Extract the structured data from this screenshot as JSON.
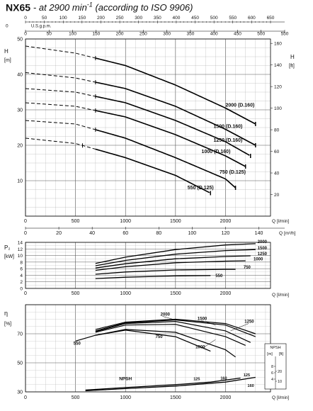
{
  "title": {
    "model": "NX65",
    "speed": "- at 2900 min",
    "exp": "-1",
    "norm": "(according to ISO 9906)"
  },
  "axes": {
    "us_label": "U.S.g.p.m.",
    "us_ticks": [
      "0",
      "50",
      "100",
      "150",
      "200",
      "250",
      "300",
      "350",
      "400",
      "450",
      "500",
      "550",
      "600",
      "650"
    ],
    "imp_label": "Imp.g.p.m.",
    "imp_ticks": [
      "0",
      "50",
      "100",
      "150",
      "200",
      "250",
      "300",
      "350",
      "400",
      "450",
      "500",
      "550"
    ],
    "q_lmin_label": "Q [l/min]",
    "q_lmin_ticks": [
      "0",
      "500",
      "1000",
      "1500",
      "2000"
    ],
    "q_m3h_label": "Q [m³/h]",
    "q_m3h_ticks": [
      "0",
      "20",
      "40",
      "60",
      "80",
      "100",
      "120",
      "140"
    ],
    "h_left_label": "H",
    "h_left_unit": "[m]",
    "h_left_ticks": [
      "10",
      "20",
      "30",
      "40",
      "50"
    ],
    "h_right_label": "H",
    "h_right_unit": "[ft]",
    "h_right_ticks": [
      "20",
      "40",
      "60",
      "80",
      "100",
      "120",
      "140",
      "160"
    ],
    "p_label": "P₂",
    "p_unit": "[kW]",
    "p_ticks": [
      "0",
      "2",
      "4",
      "6",
      "8",
      "10",
      "12",
      "14"
    ],
    "eta_label": "η",
    "eta_unit": "[%]",
    "eta_ticks": [
      "30",
      "50",
      "70"
    ],
    "npsh_label": "NPSH",
    "npsh_m_label": "[m]",
    "npsh_ft_label": "[ft]",
    "npsh_m_ticks": [
      "4",
      "6",
      "8"
    ],
    "npsh_ft_ticks": [
      "10",
      "20"
    ],
    "npsh_curve_label": "NPSH"
  },
  "chart_data": [
    {
      "type": "line",
      "name": "head",
      "xlabel": "Q [l/min]",
      "ylabel": "H [m]",
      "xlim": [
        0,
        2450
      ],
      "ylim": [
        0,
        50
      ],
      "series": [
        {
          "name": "2000 (D.160)",
          "points": [
            [
              0,
              48
            ],
            [
              500,
              46
            ],
            [
              1000,
              42.5
            ],
            [
              1500,
              37
            ],
            [
              2000,
              30.5
            ],
            [
              2300,
              26
            ]
          ]
        },
        {
          "name": "1500 (D.160)",
          "points": [
            [
              0,
              40.5
            ],
            [
              500,
              39
            ],
            [
              1000,
              36
            ],
            [
              1500,
              31
            ],
            [
              2000,
              24.5
            ],
            [
              2300,
              20
            ]
          ]
        },
        {
          "name": "1250 (D.160)",
          "points": [
            [
              0,
              36
            ],
            [
              500,
              35
            ],
            [
              1000,
              32
            ],
            [
              1500,
              27
            ],
            [
              2000,
              21
            ],
            [
              2250,
              17
            ]
          ]
        },
        {
          "name": "1000 (D.160)",
          "points": [
            [
              0,
              32
            ],
            [
              500,
              31
            ],
            [
              1000,
              28
            ],
            [
              1500,
              23
            ],
            [
              2000,
              17
            ],
            [
              2200,
              14
            ]
          ]
        },
        {
          "name": "750 (D.125)",
          "points": [
            [
              0,
              27
            ],
            [
              500,
              26
            ],
            [
              1000,
              22
            ],
            [
              1500,
              16.5
            ],
            [
              2000,
              10.5
            ],
            [
              2100,
              8
            ]
          ]
        },
        {
          "name": "550 (D.125)",
          "points": [
            [
              0,
              22
            ],
            [
              500,
              20.5
            ],
            [
              1000,
              16.5
            ],
            [
              1500,
              11.5
            ],
            [
              1850,
              6.5
            ]
          ]
        }
      ]
    },
    {
      "type": "line",
      "name": "power",
      "xlabel": "Q [l/min]",
      "ylabel": "P₂ [kW]",
      "xlim": [
        0,
        2450
      ],
      "ylim": [
        0,
        14
      ],
      "series": [
        {
          "name": "2000",
          "points": [
            [
              700,
              7.6
            ],
            [
              1000,
              9.5
            ],
            [
              1500,
              11.8
            ],
            [
              2000,
              13.2
            ],
            [
              2300,
              13.6
            ]
          ]
        },
        {
          "name": "1500",
          "points": [
            [
              700,
              6.9
            ],
            [
              1000,
              8.5
            ],
            [
              1500,
              10.4
            ],
            [
              2000,
              11.5
            ],
            [
              2300,
              11.8
            ]
          ]
        },
        {
          "name": "1250",
          "points": [
            [
              700,
              6.2
            ],
            [
              1000,
              7.5
            ],
            [
              1500,
              9.0
            ],
            [
              2000,
              9.7
            ],
            [
              2250,
              9.9
            ]
          ]
        },
        {
          "name": "1000",
          "points": [
            [
              700,
              5.5
            ],
            [
              1000,
              6.6
            ],
            [
              1500,
              7.8
            ],
            [
              2000,
              8.3
            ],
            [
              2200,
              8.4
            ]
          ]
        },
        {
          "name": "750",
          "points": [
            [
              700,
              4.3
            ],
            [
              1000,
              5.0
            ],
            [
              1500,
              5.6
            ],
            [
              2000,
              5.8
            ],
            [
              2100,
              5.8
            ]
          ]
        },
        {
          "name": "550",
          "points": [
            [
              700,
              3.0
            ],
            [
              1000,
              3.4
            ],
            [
              1500,
              3.8
            ],
            [
              1850,
              3.9
            ]
          ]
        }
      ]
    },
    {
      "type": "line",
      "name": "efficiency",
      "xlabel": "Q [l/min]",
      "ylabel": "η [%]",
      "xlim": [
        0,
        2450
      ],
      "ylim": [
        30,
        90
      ],
      "series": [
        {
          "name": "2000",
          "points": [
            [
              700,
              73
            ],
            [
              1000,
              78
            ],
            [
              1500,
              80
            ],
            [
              2000,
              77
            ],
            [
              2300,
              70
            ]
          ]
        },
        {
          "name": "1500",
          "points": [
            [
              700,
              72
            ],
            [
              1000,
              77.5
            ],
            [
              1500,
              79.5
            ],
            [
              2000,
              76
            ],
            [
              2300,
              68
            ]
          ]
        },
        {
          "name": "1250",
          "points": [
            [
              700,
              71.5
            ],
            [
              1000,
              77
            ],
            [
              1500,
              78.5
            ],
            [
              2000,
              72
            ],
            [
              2250,
              64
            ]
          ]
        },
        {
          "name": "1000",
          "points": [
            [
              700,
              71
            ],
            [
              1000,
              76
            ],
            [
              1500,
              76.5
            ],
            [
              2000,
              68
            ],
            [
              2200,
              62
            ]
          ]
        },
        {
          "name": "750",
          "points": [
            [
              700,
              69
            ],
            [
              1000,
              73
            ],
            [
              1500,
              71
            ],
            [
              2000,
              59
            ],
            [
              2100,
              54
            ]
          ]
        },
        {
          "name": "550",
          "points": [
            [
              500,
              65
            ],
            [
              700,
              69
            ],
            [
              1000,
              72.5
            ],
            [
              1500,
              68
            ],
            [
              1850,
              58
            ]
          ]
        }
      ]
    },
    {
      "type": "line",
      "name": "npsh",
      "xlabel": "Q [l/min]",
      "ylabel": "NPSH [m]",
      "xlim": [
        0,
        2450
      ],
      "ylim": [
        0,
        10
      ],
      "series": [
        {
          "name": "125",
          "points": [
            [
              600,
              0.5
            ],
            [
              1000,
              1.2
            ],
            [
              1500,
              2.0
            ],
            [
              1850,
              2.7
            ],
            [
              2150,
              3.8
            ]
          ]
        },
        {
          "name": "160",
          "points": [
            [
              600,
              0.3
            ],
            [
              1000,
              0.9
            ],
            [
              1500,
              1.6
            ],
            [
              2000,
              2.7
            ],
            [
              2300,
              4.0
            ]
          ]
        }
      ],
      "labels": [
        "125",
        "160",
        "125",
        "160"
      ]
    }
  ]
}
